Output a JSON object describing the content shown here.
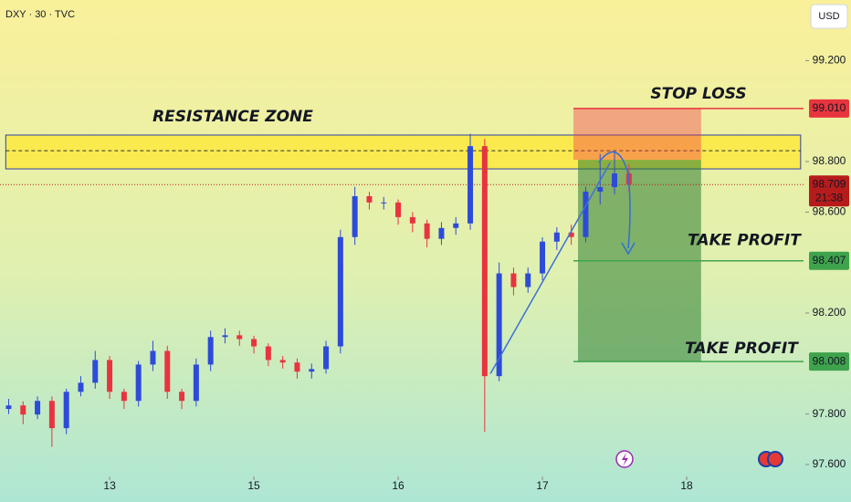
{
  "chart_data": {
    "type": "candlestick",
    "title": "DXY · 30 · TVC",
    "currency": "USD",
    "up_color": "#2d4bd8",
    "down_color": "#e8343f",
    "x": [
      -0.7,
      -0.6,
      -0.5,
      -0.4,
      -0.3,
      -0.2,
      -0.1,
      0,
      0.1,
      0.2,
      0.3,
      0.4,
      0.5,
      0.6,
      0.7,
      0.8,
      0.9,
      1,
      1.1,
      1.2,
      1.3,
      1.4,
      1.5,
      1.6,
      1.7,
      1.8,
      1.9,
      2,
      2.1,
      2.2,
      2.3,
      2.4,
      2.5,
      2.6,
      2.7,
      2.8,
      2.9,
      3,
      3.1,
      3.2,
      3.3,
      3.4,
      3.5,
      3.6
    ],
    "open": [
      97.82,
      97.834,
      97.798,
      97.852,
      97.744,
      97.888,
      97.924,
      98.014,
      97.888,
      97.852,
      97.996,
      98.05,
      97.888,
      97.852,
      97.996,
      98.105,
      98.112,
      98.097,
      98.068,
      98.014,
      98.004,
      97.968,
      97.978,
      98.068,
      98.501,
      98.663,
      98.638,
      98.638,
      98.58,
      98.555,
      98.494,
      98.537,
      98.555,
      98.861,
      97.95,
      98.357,
      98.303,
      98.357,
      98.483,
      98.519,
      98.501,
      98.681,
      98.699,
      98.753
    ],
    "high": [
      97.86,
      97.85,
      97.87,
      97.87,
      97.9,
      97.95,
      98.05,
      98.03,
      97.9,
      98.01,
      98.09,
      98.07,
      97.9,
      98.02,
      98.13,
      98.14,
      98.13,
      98.11,
      98.08,
      98.03,
      98.02,
      98,
      98.09,
      98.53,
      98.7,
      98.68,
      98.66,
      98.65,
      98.6,
      98.57,
      98.56,
      98.58,
      98.91,
      98.89,
      98.4,
      98.38,
      98.38,
      98.5,
      98.54,
      98.55,
      98.7,
      98.83,
      98.84,
      98.79
    ],
    "low": [
      97.8,
      97.76,
      97.78,
      97.67,
      97.72,
      97.87,
      97.9,
      97.86,
      97.82,
      97.83,
      97.97,
      97.86,
      97.82,
      97.83,
      97.97,
      98.08,
      98.07,
      98.04,
      97.99,
      97.98,
      97.94,
      97.94,
      97.96,
      98.04,
      98.47,
      98.61,
      98.61,
      98.55,
      98.52,
      98.46,
      98.47,
      98.51,
      98.53,
      97.73,
      97.93,
      98.27,
      98.28,
      98.33,
      98.45,
      98.47,
      98.48,
      98.63,
      98.67,
      98.68
    ],
    "close": [
      97.834,
      97.798,
      97.852,
      97.744,
      97.888,
      97.924,
      98.014,
      97.888,
      97.852,
      97.996,
      98.05,
      97.888,
      97.852,
      97.996,
      98.105,
      98.112,
      98.097,
      98.068,
      98.014,
      98.004,
      97.968,
      97.978,
      98.068,
      98.501,
      98.663,
      98.638,
      98.638,
      98.58,
      98.555,
      98.494,
      98.537,
      98.555,
      98.861,
      97.95,
      98.357,
      98.303,
      98.357,
      98.483,
      98.519,
      98.501,
      98.681,
      98.699,
      98.753,
      98.709
    ],
    "xlim": [
      -0.76,
      4.81
    ],
    "ylim": [
      97.56,
      99.44
    ],
    "xticks": [
      {
        "value": 0,
        "label": "13"
      },
      {
        "value": 1,
        "label": "15"
      },
      {
        "value": 2,
        "label": "16"
      },
      {
        "value": 3,
        "label": "17"
      },
      {
        "value": 4,
        "label": "18"
      }
    ],
    "yticks": [
      {
        "value": 97.6,
        "label": "97.600"
      },
      {
        "value": 97.8,
        "label": "97.800"
      },
      {
        "value": 98.2,
        "label": "98.200"
      },
      {
        "value": 98.6,
        "label": "98.600"
      },
      {
        "value": 98.8,
        "label": "98.800"
      },
      {
        "value": 99.2,
        "label": "99.200"
      }
    ],
    "zone": {
      "name": "RESISTANCE ZONE",
      "x": [
        -0.72,
        4.79
      ],
      "range": [
        98.771,
        98.905
      ],
      "midline": 98.843
    },
    "levels": [
      {
        "name": "STOP LOSS",
        "value": 99.01,
        "value_label": "99.010",
        "color": "#e8343f"
      },
      {
        "name": "TAKE PROFIT",
        "value": 98.407,
        "value_label": "98.407",
        "color": "#3fa34d"
      },
      {
        "name": "TAKE PROFIT",
        "value": 98.008,
        "value_label": "98.008",
        "color": "#3fa34d"
      }
    ],
    "position": {
      "x": [
        3.215,
        4.1
      ],
      "entry": 98.807
    },
    "last_price": {
      "value": 98.709,
      "label": "98.709",
      "countdown": "21:38",
      "color": "#b71c1c"
    },
    "trendline": {
      "x": [
        2.64,
        3.47
      ],
      "y": [
        97.96,
        98.796
      ],
      "color": "#3d6fd8"
    }
  }
}
